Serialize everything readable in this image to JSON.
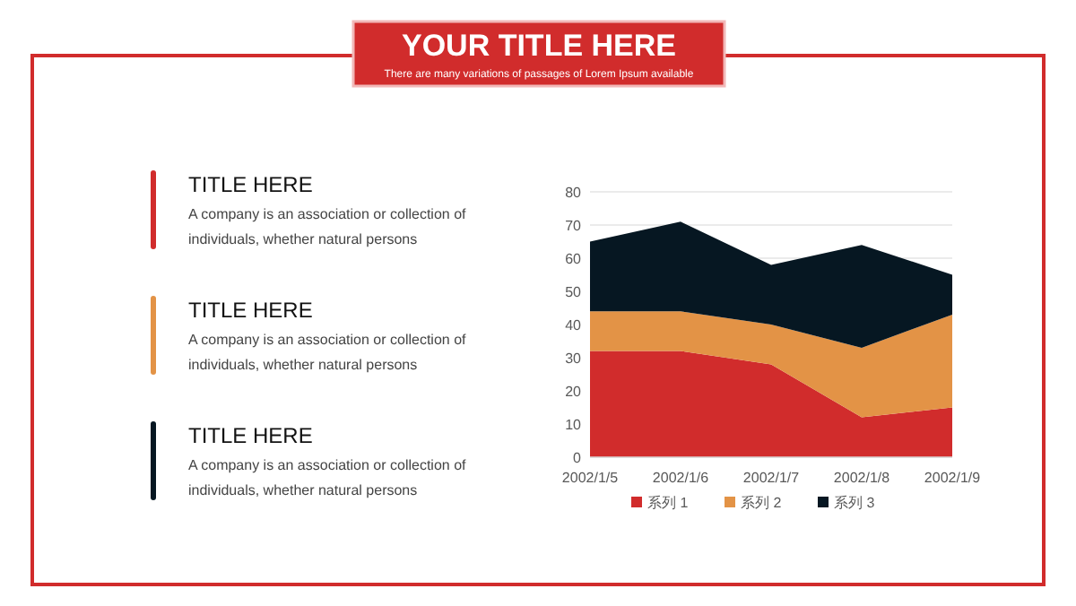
{
  "chart_data": {
    "type": "area",
    "stacked": true,
    "title": "YOUR TITLE HERE",
    "subtitle": "There are many variations of passages of Lorem Ipsum available",
    "categories": [
      "2002/1/5",
      "2002/1/6",
      "2002/1/7",
      "2002/1/8",
      "2002/1/9"
    ],
    "series": [
      {
        "name": "系列 1",
        "color": "#d12c2c",
        "values": [
          32,
          32,
          28,
          12,
          15
        ]
      },
      {
        "name": "系列 2",
        "color": "#e39346",
        "values": [
          12,
          12,
          12,
          21,
          28
        ]
      },
      {
        "name": "系列 3",
        "color": "#061722",
        "values": [
          21,
          27,
          18,
          31,
          12
        ]
      }
    ],
    "ylim": [
      0,
      80
    ],
    "yticks": [
      0,
      10,
      20,
      30,
      40,
      50,
      60,
      70,
      80
    ],
    "grid": "y",
    "legend": "bottom",
    "annotations": [
      "TITLE HERE",
      "A company is an association or collection of individuals, whether natural persons",
      "TITLE HERE",
      "A company is an association or collection of individuals, whether natural persons",
      "TITLE HERE",
      "A company is an association or collection of individuals, whether natural persons"
    ]
  }
}
